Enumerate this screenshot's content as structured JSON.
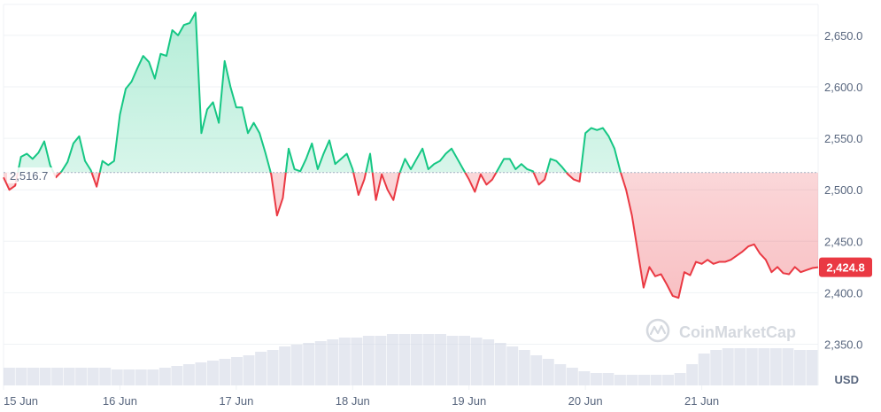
{
  "chart_data": {
    "type": "area",
    "baseline": 2516.7,
    "baseline_label": "2,516.7",
    "current_value": 2424.8,
    "current_label": "2,424.8",
    "y_range": [
      2310,
      2680
    ],
    "x_range": [
      0,
      7
    ],
    "y_ticks": [
      {
        "value": 2350,
        "label": "2,350.0"
      },
      {
        "value": 2400,
        "label": "2,400.0"
      },
      {
        "value": 2450,
        "label": "2,450.0"
      },
      {
        "value": 2500,
        "label": "2,500.0"
      },
      {
        "value": 2550,
        "label": "2,550.0"
      },
      {
        "value": 2600,
        "label": "2,600.0"
      },
      {
        "value": 2650,
        "label": "2,650.0"
      }
    ],
    "x_ticks": [
      {
        "value": 0,
        "label": "15 Jun"
      },
      {
        "value": 1,
        "label": "16 Jun"
      },
      {
        "value": 2,
        "label": "17 Jun"
      },
      {
        "value": 3,
        "label": "18 Jun"
      },
      {
        "value": 4,
        "label": "19 Jun"
      },
      {
        "value": 5,
        "label": "20 Jun"
      },
      {
        "value": 6,
        "label": "21 Jun"
      }
    ],
    "unit_label": "USD",
    "watermark": "CoinMarketCap",
    "grid": "horizontal",
    "colors": {
      "up": "#16c784",
      "down": "#ea3943",
      "grid": "#eff2f5",
      "text": "#58667e",
      "volume": "#cfd6e4"
    },
    "series": [
      {
        "x": [
          0,
          0.05,
          0.1,
          0.15,
          0.2,
          0.25,
          0.3,
          0.35,
          0.4,
          0.45,
          0.5,
          0.55,
          0.6,
          0.65,
          0.7,
          0.75,
          0.8,
          0.85,
          0.9,
          0.95,
          1.0,
          1.05,
          1.1,
          1.15,
          1.2,
          1.25,
          1.3,
          1.35,
          1.4,
          1.45,
          1.5,
          1.55,
          1.6,
          1.65,
          1.7,
          1.75,
          1.8,
          1.85,
          1.9,
          1.95,
          2.0,
          2.05,
          2.1,
          2.15,
          2.2,
          2.25,
          2.3,
          2.35,
          2.4,
          2.45,
          2.5,
          2.55,
          2.6,
          2.65,
          2.7,
          2.75,
          2.8,
          2.85,
          2.9,
          2.95,
          3.0,
          3.05,
          3.1,
          3.15,
          3.2,
          3.25,
          3.3,
          3.35,
          3.4,
          3.45,
          3.5,
          3.55,
          3.6,
          3.65,
          3.7,
          3.75,
          3.8,
          3.85,
          3.9,
          3.95,
          4.0,
          4.05,
          4.1,
          4.15,
          4.2,
          4.25,
          4.3,
          4.35,
          4.4,
          4.45,
          4.5,
          4.55,
          4.6,
          4.65,
          4.7,
          4.75,
          4.8,
          4.85,
          4.9,
          4.95,
          5.0,
          5.05,
          5.1,
          5.15,
          5.2,
          5.25,
          5.3,
          5.35,
          5.4,
          5.45,
          5.5,
          5.55,
          5.6,
          5.65,
          5.7,
          5.75,
          5.8,
          5.85,
          5.9,
          5.95,
          6.0,
          6.05,
          6.1,
          6.15,
          6.2,
          6.25,
          6.3,
          6.35,
          6.4,
          6.45,
          6.5,
          6.55,
          6.6,
          6.65,
          6.7,
          6.75,
          6.8,
          6.85,
          6.9,
          6.95,
          7.0
        ],
        "y": [
          2512,
          2500,
          2504,
          2532,
          2535,
          2530,
          2536,
          2547,
          2524,
          2512,
          2518,
          2527,
          2545,
          2552,
          2528,
          2519,
          2503,
          2528,
          2524,
          2528,
          2573,
          2598,
          2605,
          2618,
          2630,
          2624,
          2608,
          2632,
          2630,
          2655,
          2650,
          2660,
          2662,
          2672,
          2555,
          2578,
          2585,
          2565,
          2625,
          2600,
          2580,
          2580,
          2555,
          2565,
          2555,
          2536,
          2515,
          2475,
          2492,
          2540,
          2520,
          2518,
          2530,
          2545,
          2520,
          2535,
          2548,
          2525,
          2530,
          2535,
          2520,
          2495,
          2510,
          2535,
          2490,
          2515,
          2500,
          2490,
          2515,
          2530,
          2520,
          2530,
          2540,
          2520,
          2525,
          2528,
          2535,
          2540,
          2530,
          2520,
          2510,
          2498,
          2515,
          2505,
          2510,
          2520,
          2530,
          2530,
          2520,
          2525,
          2520,
          2518,
          2505,
          2510,
          2530,
          2528,
          2522,
          2515,
          2510,
          2508,
          2555,
          2560,
          2558,
          2560,
          2552,
          2540,
          2518,
          2500,
          2475,
          2440,
          2405,
          2425,
          2416,
          2418,
          2408,
          2397,
          2395,
          2420,
          2417,
          2430,
          2428,
          2432,
          2428,
          2430,
          2430,
          2432,
          2436,
          2440,
          2445,
          2447,
          2438,
          2432,
          2420,
          2425,
          2419,
          2418,
          2425,
          2420,
          2422,
          2424,
          2424.8
        ]
      }
    ],
    "volume": [
      0.1,
      0.1,
      0.1,
      0.1,
      0.1,
      0.1,
      0.1,
      0.1,
      0.1,
      0.09,
      0.09,
      0.09,
      0.09,
      0.1,
      0.11,
      0.12,
      0.13,
      0.14,
      0.15,
      0.16,
      0.17,
      0.19,
      0.2,
      0.22,
      0.23,
      0.24,
      0.25,
      0.26,
      0.27,
      0.27,
      0.28,
      0.28,
      0.29,
      0.29,
      0.29,
      0.29,
      0.29,
      0.28,
      0.28,
      0.27,
      0.26,
      0.24,
      0.22,
      0.2,
      0.17,
      0.15,
      0.12,
      0.1,
      0.08,
      0.07,
      0.07,
      0.06,
      0.06,
      0.06,
      0.06,
      0.06,
      0.07,
      0.12,
      0.18,
      0.2,
      0.21,
      0.21,
      0.21,
      0.21,
      0.21,
      0.21,
      0.2,
      0.2
    ]
  }
}
